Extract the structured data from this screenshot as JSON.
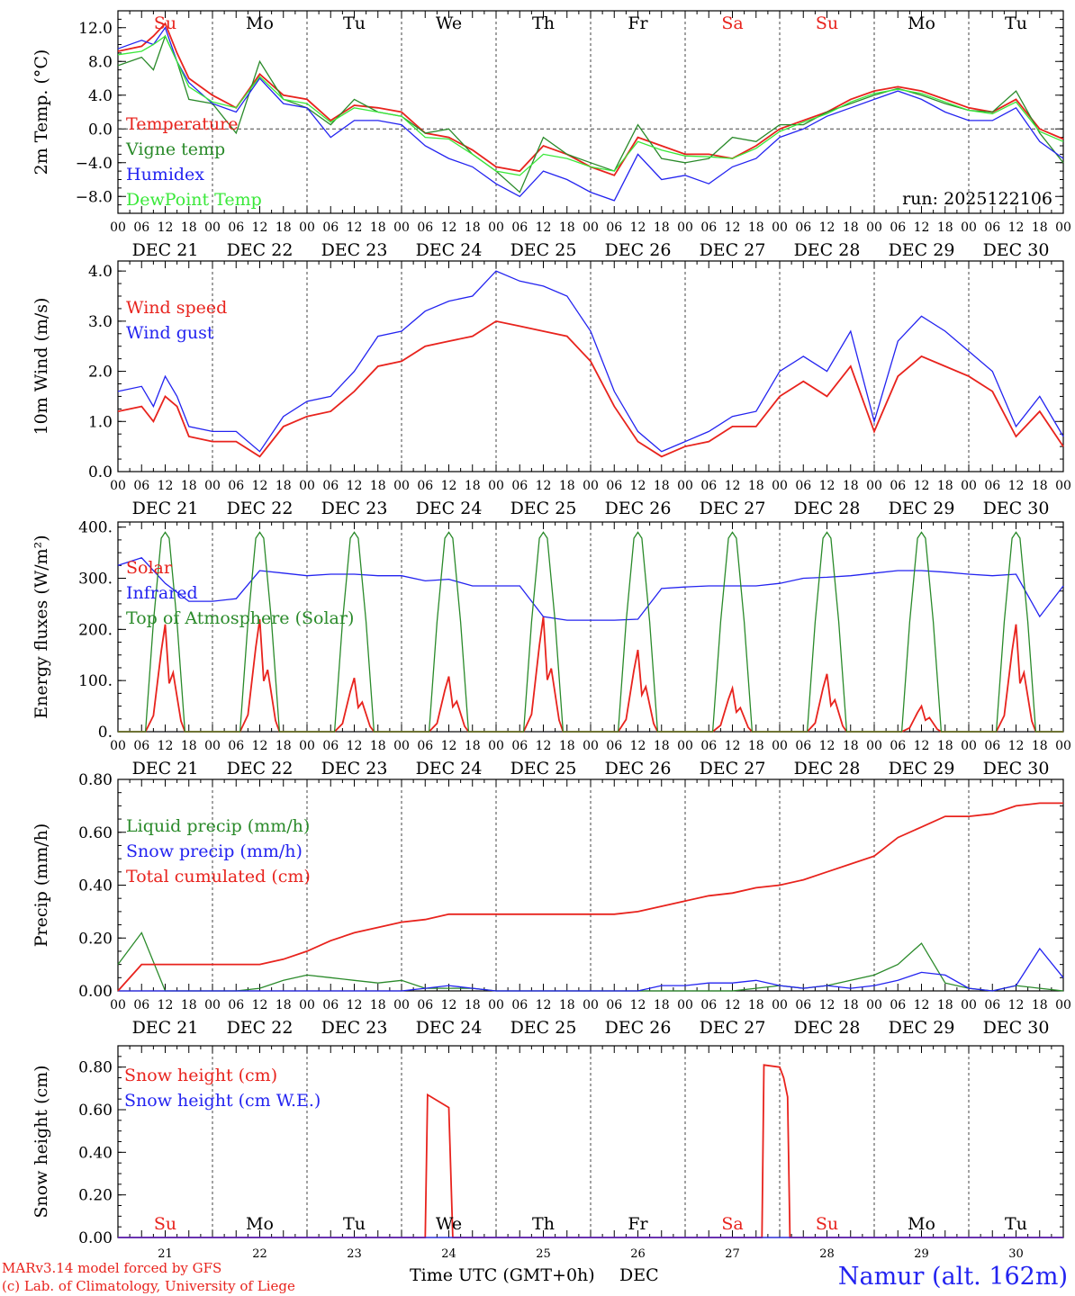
{
  "colors": {
    "red": "#e8231d",
    "green": "#2a8a2a",
    "blue": "#2323f0",
    "lightgreen": "#39e839",
    "black": "#000000"
  },
  "run_label": "run: 2025122106",
  "x_ticks": [
    "00",
    "06",
    "12",
    "18"
  ],
  "dates": [
    "DEC 21",
    "DEC 22",
    "DEC 23",
    "DEC 24",
    "DEC 25",
    "DEC 26",
    "DEC 27",
    "DEC 28",
    "DEC 29",
    "DEC 30"
  ],
  "days": [
    {
      "label": "Su",
      "color": "red"
    },
    {
      "label": "Mo",
      "color": "black"
    },
    {
      "label": "Tu",
      "color": "black"
    },
    {
      "label": "We",
      "color": "black"
    },
    {
      "label": "Th",
      "color": "black"
    },
    {
      "label": "Fr",
      "color": "black"
    },
    {
      "label": "Sa",
      "color": "red"
    },
    {
      "label": "Su",
      "color": "red"
    },
    {
      "label": "Mo",
      "color": "black"
    },
    {
      "label": "Tu",
      "color": "black"
    }
  ],
  "day_numbers": [
    "21",
    "22",
    "23",
    "24",
    "25",
    "26",
    "27",
    "28",
    "29",
    "30"
  ],
  "footer": {
    "line1": "MARv3.14 model forced by GFS",
    "line2": "(c) Lab. of Climatology, University of Liege",
    "time_label": "Time UTC (GMT+0h)",
    "month": "DEC",
    "station": "Namur (alt. 162m)"
  },
  "chart_data": [
    {
      "type": "line",
      "title": "",
      "ylabel": "2m Temp. (°C)",
      "ylim": [
        -10,
        14
      ],
      "yticks": [
        -8,
        -4,
        0,
        4,
        8,
        12
      ],
      "ytick_labels": [
        "−8.0",
        "−4.0",
        "0.0",
        "4.0",
        "8.0",
        "12.0"
      ],
      "zero_line": true,
      "x_hours": [
        0,
        6,
        9,
        12,
        15,
        18,
        24,
        30,
        36,
        42,
        48,
        54,
        60,
        66,
        72,
        78,
        84,
        90,
        96,
        102,
        108,
        114,
        120,
        126,
        132,
        138,
        144,
        150,
        156,
        162,
        168,
        174,
        180,
        186,
        192,
        198,
        204,
        210,
        216,
        222,
        228,
        234,
        240
      ],
      "series": [
        {
          "name": "Temperature",
          "color": "red",
          "values": [
            9.2,
            9.8,
            11,
            12.5,
            9,
            6,
            4,
            2.5,
            6.5,
            4,
            3.5,
            1,
            2.8,
            2.5,
            2,
            -0.5,
            -1,
            -2.5,
            -4.5,
            -5,
            -2,
            -3,
            -4.5,
            -5.5,
            -1,
            -2,
            -3,
            -3,
            -3.5,
            -2,
            0,
            1,
            2,
            3.5,
            4.5,
            5,
            4.5,
            3.5,
            2.5,
            2,
            3.5,
            0,
            -1.2
          ]
        },
        {
          "name": "Vigne temp",
          "color": "green",
          "values": [
            7.5,
            8.5,
            7,
            11,
            8,
            3.5,
            3,
            -0.5,
            8,
            3.5,
            2.5,
            0.5,
            3.5,
            2,
            1.5,
            -0.5,
            0,
            -3,
            -5,
            -7.5,
            -1,
            -3,
            -4,
            -5,
            0.5,
            -3.5,
            -4,
            -3.5,
            -1,
            -1.5,
            0.5,
            0.5,
            2,
            3,
            4,
            4.8,
            4,
            3,
            2.2,
            2,
            4.5,
            -0.5,
            -4
          ]
        },
        {
          "name": "Humidex",
          "color": "blue",
          "values": [
            9.5,
            10.5,
            10,
            12,
            8,
            5.5,
            3,
            2,
            6,
            3,
            2.5,
            -1,
            1,
            1,
            0.5,
            -2,
            -3.5,
            -4.5,
            -6.5,
            -8,
            -5,
            -6,
            -7.5,
            -8.5,
            -3,
            -6,
            -5.5,
            -6.5,
            -4.5,
            -3.5,
            -1,
            0,
            1.5,
            2.5,
            3.5,
            4.5,
            3.5,
            2,
            1,
            1,
            2.5,
            -1.5,
            -3.5
          ]
        },
        {
          "name": "DewPoint Temp",
          "color": "lightgreen",
          "values": [
            8.8,
            9.2,
            10,
            11,
            8,
            5,
            3.2,
            2.5,
            6.2,
            3.5,
            3,
            0.8,
            2.5,
            2,
            1.5,
            -1,
            -1.2,
            -3,
            -5,
            -5.5,
            -3,
            -3.5,
            -4.5,
            -5,
            -1.5,
            -2.5,
            -3.2,
            -3.3,
            -3.5,
            -2.3,
            -0.3,
            0.8,
            1.8,
            3.2,
            4.2,
            4.7,
            4.2,
            3.2,
            2.2,
            1.8,
            3.2,
            -0.3,
            -1.5
          ]
        }
      ]
    },
    {
      "type": "line",
      "title": "",
      "ylabel": "10m Wind (m/s)",
      "ylim": [
        0,
        4.2
      ],
      "yticks": [
        0,
        1,
        2,
        3,
        4
      ],
      "ytick_labels": [
        "0.0",
        "1.0",
        "2.0",
        "3.0",
        "4.0"
      ],
      "x_hours": [
        0,
        6,
        9,
        12,
        15,
        18,
        24,
        30,
        36,
        42,
        48,
        54,
        60,
        66,
        72,
        78,
        84,
        90,
        96,
        102,
        108,
        114,
        120,
        126,
        132,
        138,
        144,
        150,
        156,
        162,
        168,
        174,
        180,
        186,
        192,
        198,
        204,
        210,
        216,
        222,
        228,
        234,
        240
      ],
      "series": [
        {
          "name": "Wind speed",
          "color": "red",
          "values": [
            1.2,
            1.3,
            1,
            1.5,
            1.3,
            0.7,
            0.6,
            0.6,
            0.3,
            0.9,
            1.1,
            1.2,
            1.6,
            2.1,
            2.2,
            2.5,
            2.6,
            2.7,
            3,
            2.9,
            2.8,
            2.7,
            2.2,
            1.3,
            0.6,
            0.3,
            0.5,
            0.6,
            0.9,
            0.9,
            1.5,
            1.8,
            1.5,
            2.1,
            0.8,
            1.9,
            2.3,
            2.1,
            1.9,
            1.6,
            0.7,
            1.2,
            0.5
          ]
        },
        {
          "name": "Wind gust",
          "color": "blue",
          "values": [
            1.6,
            1.7,
            1.3,
            1.9,
            1.5,
            0.9,
            0.8,
            0.8,
            0.4,
            1.1,
            1.4,
            1.5,
            2,
            2.7,
            2.8,
            3.2,
            3.4,
            3.5,
            4,
            3.8,
            3.7,
            3.5,
            2.8,
            1.6,
            0.8,
            0.4,
            0.6,
            0.8,
            1.1,
            1.2,
            2,
            2.3,
            2,
            2.8,
            1,
            2.6,
            3.1,
            2.8,
            2.4,
            2,
            0.9,
            1.5,
            0.7
          ]
        }
      ]
    },
    {
      "type": "line",
      "title": "",
      "ylabel": "Energy fluxes (W/m²)",
      "ylim": [
        0,
        410
      ],
      "yticks": [
        0,
        100,
        200,
        300,
        400
      ],
      "ytick_labels": [
        "0.",
        "100.",
        "200.",
        "300.",
        "400."
      ],
      "x_hours": [
        0,
        6,
        12,
        18,
        24,
        30,
        36,
        42,
        48,
        54,
        60,
        66,
        72,
        78,
        84,
        90,
        96,
        102,
        108,
        114,
        120,
        126,
        132,
        138,
        144,
        150,
        156,
        162,
        168,
        174,
        180,
        186,
        192,
        198,
        204,
        210,
        216,
        222,
        228,
        234,
        240
      ],
      "series": [
        {
          "name": "Solar",
          "color": "red",
          "peaks": [
            210,
            220,
            105,
            108,
            225,
            160,
            85,
            113,
            50,
            210
          ]
        },
        {
          "name": "Infrared",
          "color": "blue",
          "values": [
            325,
            340,
            290,
            255,
            255,
            260,
            315,
            310,
            305,
            308,
            308,
            305,
            305,
            295,
            298,
            285,
            285,
            285,
            225,
            218,
            218,
            218,
            220,
            280,
            283,
            285,
            285,
            285,
            290,
            300,
            302,
            305,
            310,
            315,
            315,
            312,
            308,
            305,
            308,
            225,
            285
          ]
        },
        {
          "name": "Top of Atmosphere (Solar)",
          "color": "green",
          "peak": 390
        }
      ]
    },
    {
      "type": "line",
      "title": "",
      "ylabel": "Precip (mm/h)",
      "ylim": [
        0,
        0.8
      ],
      "yticks": [
        0,
        0.2,
        0.4,
        0.6,
        0.8
      ],
      "ytick_labels": [
        "0.00",
        "0.20",
        "0.40",
        "0.60",
        "0.80"
      ],
      "x_hours": [
        0,
        6,
        12,
        18,
        24,
        30,
        36,
        42,
        48,
        54,
        60,
        66,
        72,
        78,
        84,
        90,
        96,
        102,
        108,
        114,
        120,
        126,
        132,
        138,
        144,
        150,
        156,
        162,
        168,
        174,
        180,
        186,
        192,
        198,
        204,
        210,
        216,
        222,
        228,
        234,
        240
      ],
      "series": [
        {
          "name": "Liquid precip (mm/h)",
          "color": "green",
          "values": [
            0.1,
            0.22,
            0,
            0,
            0,
            0,
            0.01,
            0.04,
            0.06,
            0.05,
            0.04,
            0.03,
            0.04,
            0.01,
            0.01,
            0.01,
            0,
            0,
            0,
            0,
            0,
            0,
            0,
            0,
            0,
            0,
            0,
            0.01,
            0.02,
            0.01,
            0.02,
            0.04,
            0.06,
            0.1,
            0.18,
            0.03,
            0.01,
            0,
            0.02,
            0.01,
            0
          ]
        },
        {
          "name": "Snow precip (mm/h)",
          "color": "blue",
          "values": [
            0,
            0,
            0,
            0,
            0,
            0,
            0,
            0,
            0,
            0,
            0,
            0,
            0,
            0.01,
            0.02,
            0.01,
            0,
            0,
            0,
            0,
            0,
            0,
            0,
            0.02,
            0.02,
            0.03,
            0.03,
            0.04,
            0.02,
            0.01,
            0.02,
            0.01,
            0.02,
            0.04,
            0.07,
            0.06,
            0.01,
            0,
            0.02,
            0.16,
            0.05
          ]
        },
        {
          "name": "Total cumulated (cm)",
          "color": "red",
          "values": [
            0,
            0.1,
            0.1,
            0.1,
            0.1,
            0.1,
            0.1,
            0.12,
            0.15,
            0.19,
            0.22,
            0.24,
            0.26,
            0.27,
            0.29,
            0.29,
            0.29,
            0.29,
            0.29,
            0.29,
            0.29,
            0.29,
            0.3,
            0.32,
            0.34,
            0.36,
            0.37,
            0.39,
            0.4,
            0.42,
            0.45,
            0.48,
            0.51,
            0.58,
            0.62,
            0.66,
            0.66,
            0.67,
            0.7,
            0.71,
            0.71
          ]
        }
      ]
    },
    {
      "type": "line",
      "title": "",
      "ylabel": "Snow height (cm)",
      "ylim": [
        0,
        0.9
      ],
      "yticks": [
        0,
        0.2,
        0.4,
        0.6,
        0.8
      ],
      "ytick_labels": [
        "0.00",
        "0.20",
        "0.40",
        "0.60",
        "0.80"
      ],
      "x_hours": [
        0,
        78,
        78.6,
        84,
        85,
        90,
        90.6,
        163.5,
        164,
        168,
        169,
        170,
        170.6,
        240
      ],
      "series": [
        {
          "name": "Snow height (cm)",
          "color": "red",
          "values": [
            0,
            0,
            0.67,
            0.61,
            0,
            0,
            0,
            0,
            0.81,
            0.8,
            0.75,
            0.66,
            0,
            0
          ]
        },
        {
          "name": "Snow height (cm W.E.)",
          "color": "blue",
          "values": [
            0,
            0,
            0,
            0,
            0,
            0,
            0,
            0,
            0,
            0,
            0,
            0,
            0,
            0
          ]
        }
      ]
    }
  ]
}
